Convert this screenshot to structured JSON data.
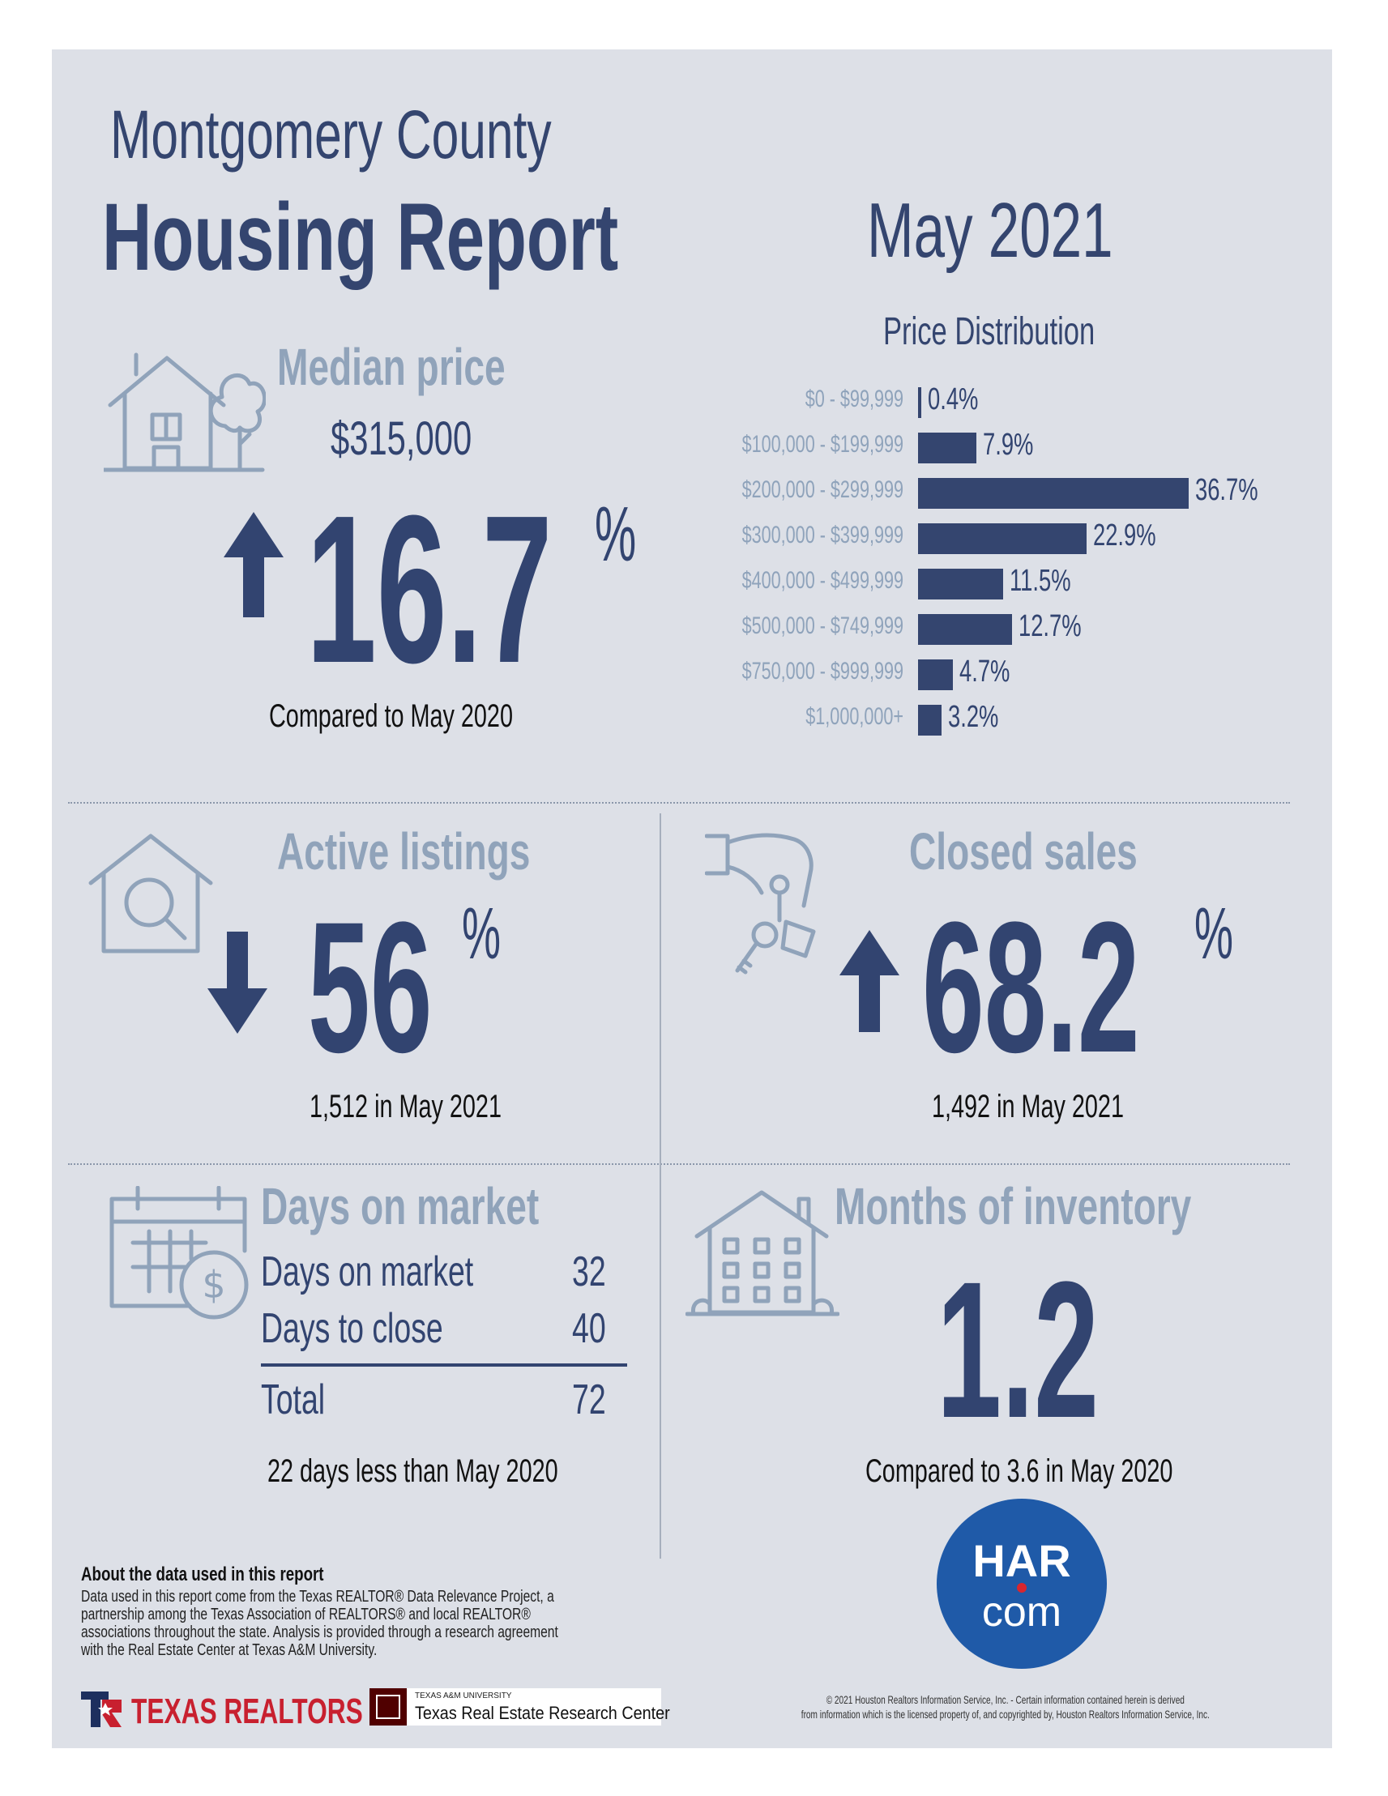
{
  "header": {
    "county": "Montgomery County",
    "report": "Housing Report",
    "month": "May 2021"
  },
  "median_price": {
    "title": "Median price",
    "value": "$315,000",
    "change": "16.7",
    "percent_sign": "%",
    "direction": "up",
    "caption": "Compared to May 2020"
  },
  "price_distribution": {
    "title": "Price Distribution",
    "rows": [
      {
        "label": "$0 - $99,999",
        "value": "0.4%"
      },
      {
        "label": "$100,000 - $199,999",
        "value": "7.9%"
      },
      {
        "label": "$200,000 - $299,999",
        "value": "36.7%"
      },
      {
        "label": "$300,000 - $399,999",
        "value": "22.9%"
      },
      {
        "label": "$400,000 - $499,999",
        "value": "11.5%"
      },
      {
        "label": "$500,000 - $749,999",
        "value": "12.7%"
      },
      {
        "label": "$750,000 - $999,999",
        "value": "4.7%"
      },
      {
        "label": "$1,000,000+",
        "value": "3.2%"
      }
    ],
    "values": [
      0.4,
      7.9,
      36.7,
      22.9,
      11.5,
      12.7,
      4.7,
      3.2
    ]
  },
  "active_listings": {
    "title": "Active listings",
    "change": "56",
    "percent_sign": "%",
    "direction": "down",
    "caption": "1,512 in May 2021"
  },
  "closed_sales": {
    "title": "Closed sales",
    "change": "68.2",
    "percent_sign": "%",
    "direction": "up",
    "caption": "1,492 in May 2021"
  },
  "days_on_market": {
    "title": "Days on market",
    "rows": [
      {
        "label": "Days on market",
        "value": "32"
      },
      {
        "label": "Days to close",
        "value": "40"
      }
    ],
    "total_label": "Total",
    "total_value": "72",
    "caption": "22 days less than May 2020"
  },
  "months_inventory": {
    "title": "Months of inventory",
    "value": "1.2",
    "caption": "Compared to 3.6 in May 2020"
  },
  "about": {
    "heading": "About the data used in this report",
    "body": "Data used in this report come from the Texas REALTOR® Data Relevance Project, a partnership among the Texas Association of REALTORS® and local REALTOR® associations throughout the state. Analysis is provided through a research agreement with the Real Estate Center at Texas A&M University."
  },
  "logos": {
    "texas_realtors": "TEXAS REALTORS",
    "tamu_small": "TEXAS A&M UNIVERSITY",
    "tamu_center": "Texas Real Estate Research Center",
    "har_top": "HAR",
    "har_bottom": "com"
  },
  "copyright": {
    "line1": "© 2021 Houston Realtors Information Service, Inc. - Certain information contained herein is derived",
    "line2": "from information which is the licensed property of, and copyrighted by, Houston Realtors Information Service, Inc."
  },
  "colors": {
    "navy": "#324470",
    "muted": "#8fa3bb",
    "panel": "#dde0e7",
    "har_blue": "#1f5aa8",
    "har_dot": "#d8262f",
    "realtors_red": "#c8202f",
    "tamu_maroon": "#500000"
  }
}
